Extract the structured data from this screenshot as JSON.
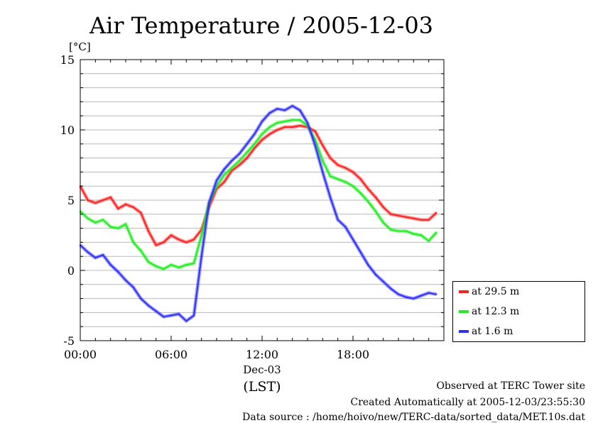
{
  "chart_data": {
    "type": "line",
    "title": "Air Temperature / 2005-12-03",
    "ylabel": "[°C]",
    "xlabel": "(LST)",
    "xlabel_sub": "Dec-03",
    "ylim": [
      -5,
      15
    ],
    "xlim": [
      0,
      24
    ],
    "x_ticks": [
      {
        "v": 0,
        "label": "00:00"
      },
      {
        "v": 6,
        "label": "06:00"
      },
      {
        "v": 12,
        "label": "12:00"
      },
      {
        "v": 18,
        "label": "18:00"
      }
    ],
    "y_ticks": [
      {
        "v": -5,
        "label": "-5"
      },
      {
        "v": 0,
        "label": "0"
      },
      {
        "v": 5,
        "label": "5"
      },
      {
        "v": 10,
        "label": "10"
      },
      {
        "v": 15,
        "label": "15"
      }
    ],
    "grid": true,
    "legend_position": "bottom-right outside",
    "series": [
      {
        "name": "at 29.5 m",
        "color": "#ff2020",
        "x": [
          0,
          0.5,
          1,
          1.5,
          2,
          2.5,
          3,
          3.5,
          4,
          4.5,
          5,
          5.5,
          6,
          6.5,
          7,
          7.5,
          8,
          8.5,
          9,
          9.5,
          10,
          10.5,
          11,
          11.5,
          12,
          12.5,
          13,
          13.5,
          14,
          14.5,
          15,
          15.5,
          16,
          16.5,
          17,
          17.5,
          18,
          18.5,
          19,
          19.5,
          20,
          20.5,
          21,
          21.5,
          22,
          22.5,
          23,
          23.5
        ],
        "values": [
          6.0,
          5.0,
          4.8,
          5.0,
          5.2,
          4.4,
          4.7,
          4.5,
          4.1,
          2.8,
          1.8,
          2.0,
          2.5,
          2.2,
          2.0,
          2.2,
          2.9,
          4.5,
          5.8,
          6.3,
          7.1,
          7.5,
          8.0,
          8.7,
          9.3,
          9.7,
          10.0,
          10.2,
          10.2,
          10.3,
          10.2,
          9.9,
          8.9,
          8.0,
          7.5,
          7.3,
          7.0,
          6.5,
          5.8,
          5.2,
          4.5,
          4.0,
          3.9,
          3.8,
          3.7,
          3.6,
          3.6,
          4.1
        ]
      },
      {
        "name": "at 12.3 m",
        "color": "#20ee20",
        "x": [
          0,
          0.5,
          1,
          1.5,
          2,
          2.5,
          3,
          3.5,
          4,
          4.5,
          5,
          5.5,
          6,
          6.5,
          7,
          7.5,
          8,
          8.5,
          9,
          9.5,
          10,
          10.5,
          11,
          11.5,
          12,
          12.5,
          13,
          13.5,
          14,
          14.5,
          15,
          15.5,
          16,
          16.5,
          17,
          17.5,
          18,
          18.5,
          19,
          19.5,
          20,
          20.5,
          21,
          21.5,
          22,
          22.5,
          23,
          23.5
        ],
        "values": [
          4.2,
          3.7,
          3.4,
          3.6,
          3.1,
          3.0,
          3.3,
          2.0,
          1.4,
          0.6,
          0.3,
          0.1,
          0.4,
          0.2,
          0.4,
          0.5,
          2.5,
          4.8,
          6.0,
          6.8,
          7.3,
          7.8,
          8.4,
          9.0,
          9.7,
          10.2,
          10.5,
          10.6,
          10.7,
          10.7,
          10.3,
          9.3,
          7.8,
          6.7,
          6.5,
          6.3,
          6.0,
          5.5,
          4.9,
          4.2,
          3.4,
          2.9,
          2.8,
          2.8,
          2.6,
          2.5,
          2.1,
          2.7
        ]
      },
      {
        "name": "at 1.6 m",
        "color": "#3030ff",
        "x": [
          0,
          0.5,
          1,
          1.5,
          2,
          2.5,
          3,
          3.5,
          4,
          4.5,
          5,
          5.5,
          6,
          6.5,
          7,
          7.5,
          8,
          8.5,
          9,
          9.5,
          10,
          10.5,
          11,
          11.5,
          12,
          12.5,
          13,
          13.5,
          14,
          14.5,
          15,
          15.5,
          16,
          16.5,
          17,
          17.5,
          18,
          18.5,
          19,
          19.5,
          20,
          20.5,
          21,
          21.5,
          22,
          22.5,
          23,
          23.5
        ],
        "values": [
          1.8,
          1.3,
          0.9,
          1.1,
          0.4,
          -0.1,
          -0.7,
          -1.2,
          -2.0,
          -2.5,
          -2.9,
          -3.3,
          -3.2,
          -3.1,
          -3.6,
          -3.2,
          1.0,
          4.8,
          6.4,
          7.2,
          7.8,
          8.3,
          9.0,
          9.7,
          10.6,
          11.2,
          11.5,
          11.4,
          11.7,
          11.4,
          10.5,
          8.9,
          7.0,
          5.2,
          3.6,
          3.1,
          2.2,
          1.3,
          0.4,
          -0.3,
          -0.8,
          -1.3,
          -1.7,
          -1.9,
          -2.0,
          -1.8,
          -1.6,
          -1.7
        ]
      }
    ]
  },
  "footer": {
    "line1": "Observed at TERC Tower site",
    "line2": "Created Automatically at 2005-12-03/23:55:30",
    "line3": "Data source : /home/hoivo/new/TERC-data/sorted_data/MET.10s.dat"
  }
}
